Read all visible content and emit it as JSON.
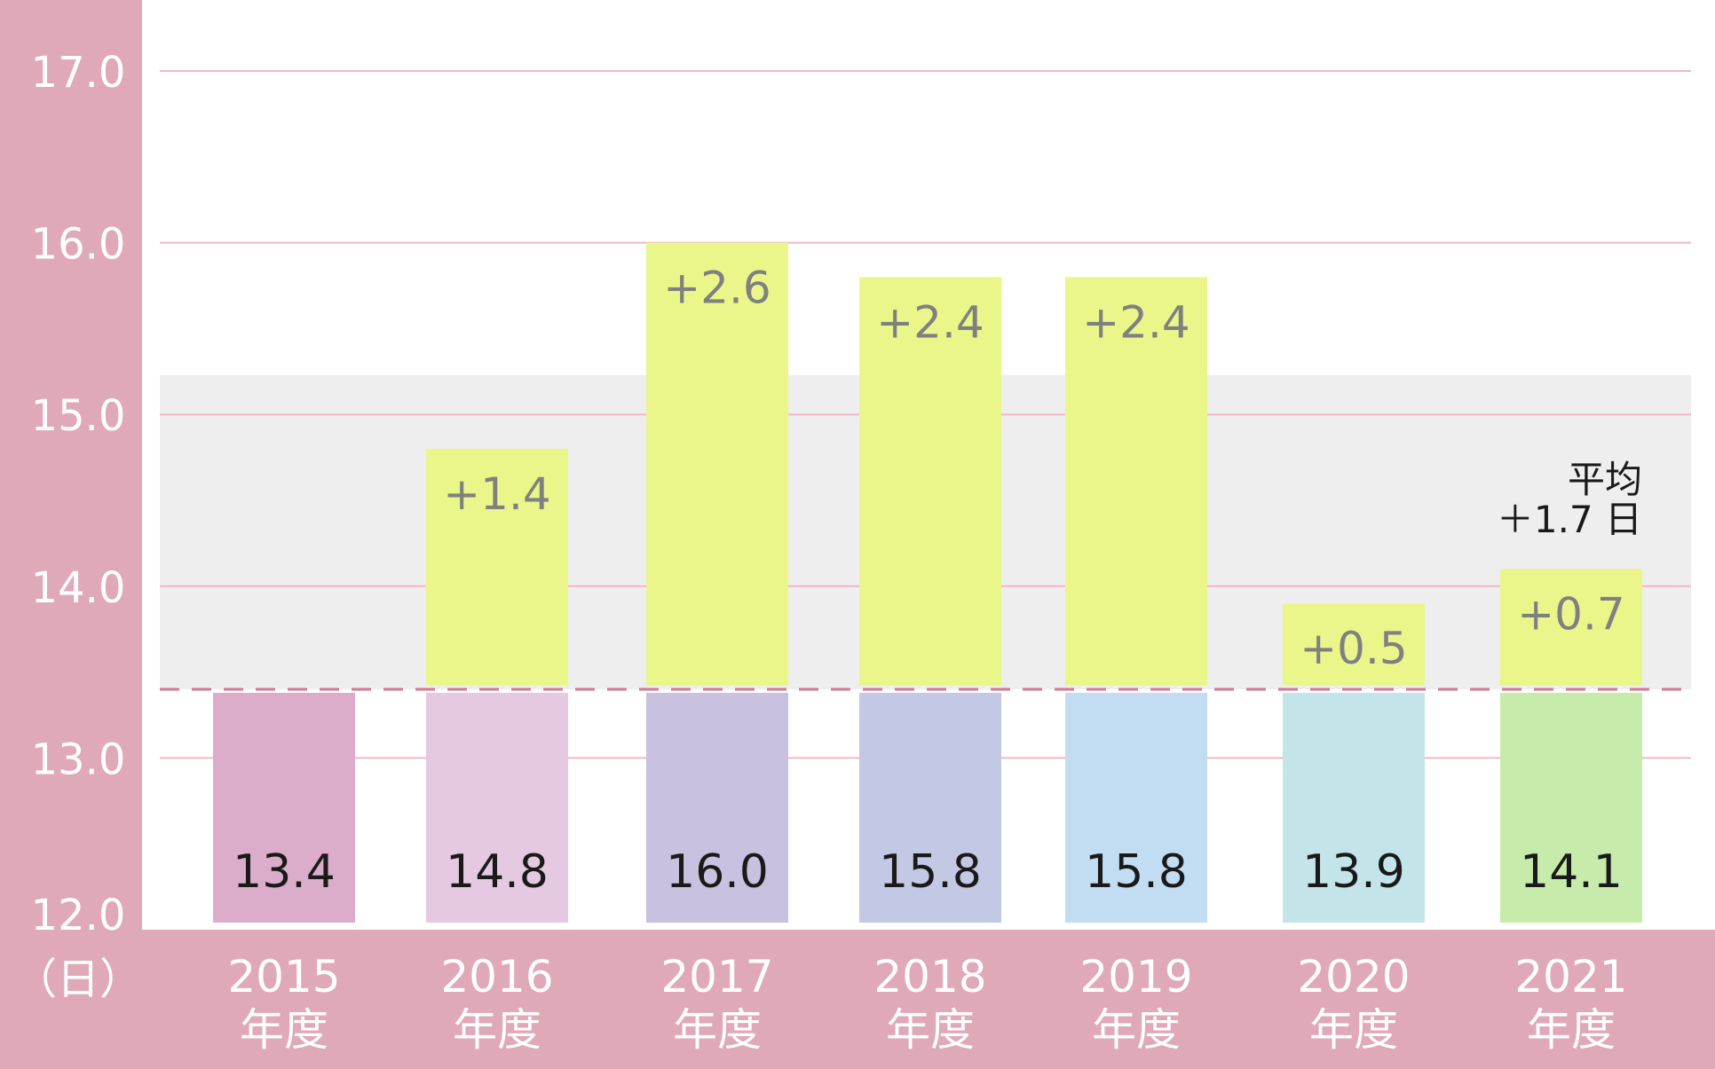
{
  "colors": {
    "frame": "#e0a9b8",
    "plot_bg": "#ffffff",
    "band": "#eeeeee",
    "grid": "#f0b8c4",
    "baseline_dash": "#d07a95",
    "increase_bar": "#ebf68a",
    "increase_label": "#808080",
    "axis_text": "#ffffff",
    "value_text": "#1a1a1a",
    "base_bars": [
      "#dcadcb",
      "#e5c9e0",
      "#c8c1df",
      "#c3c9e4",
      "#c2ddf1",
      "#c3e5ea",
      "#c6ebaa"
    ]
  },
  "chart_data": {
    "type": "bar",
    "y_unit_label": "（日）",
    "ylim": [
      12.0,
      17.0
    ],
    "yticks": [
      "12.0",
      "13.0",
      "14.0",
      "15.0",
      "16.0",
      "17.0"
    ],
    "grid": true,
    "baseline": 13.4,
    "categories": [
      {
        "year": "2015",
        "suffix": "年度"
      },
      {
        "year": "2016",
        "suffix": "年度"
      },
      {
        "year": "2017",
        "suffix": "年度"
      },
      {
        "year": "2018",
        "suffix": "年度"
      },
      {
        "year": "2019",
        "suffix": "年度"
      },
      {
        "year": "2020",
        "suffix": "年度"
      },
      {
        "year": "2021",
        "suffix": "年度"
      }
    ],
    "values": [
      13.4,
      14.8,
      16.0,
      15.8,
      15.8,
      13.9,
      14.1
    ],
    "value_labels": [
      "13.4",
      "14.8",
      "16.0",
      "15.8",
      "15.8",
      "13.9",
      "14.1"
    ],
    "increase_labels": [
      "",
      "+1.4",
      "+2.6",
      "+2.4",
      "+2.4",
      "+0.5",
      "+0.7"
    ],
    "band_range": [
      13.4,
      15.23
    ],
    "annotation": {
      "line1": "平均",
      "line2": "＋1.7 日"
    }
  }
}
